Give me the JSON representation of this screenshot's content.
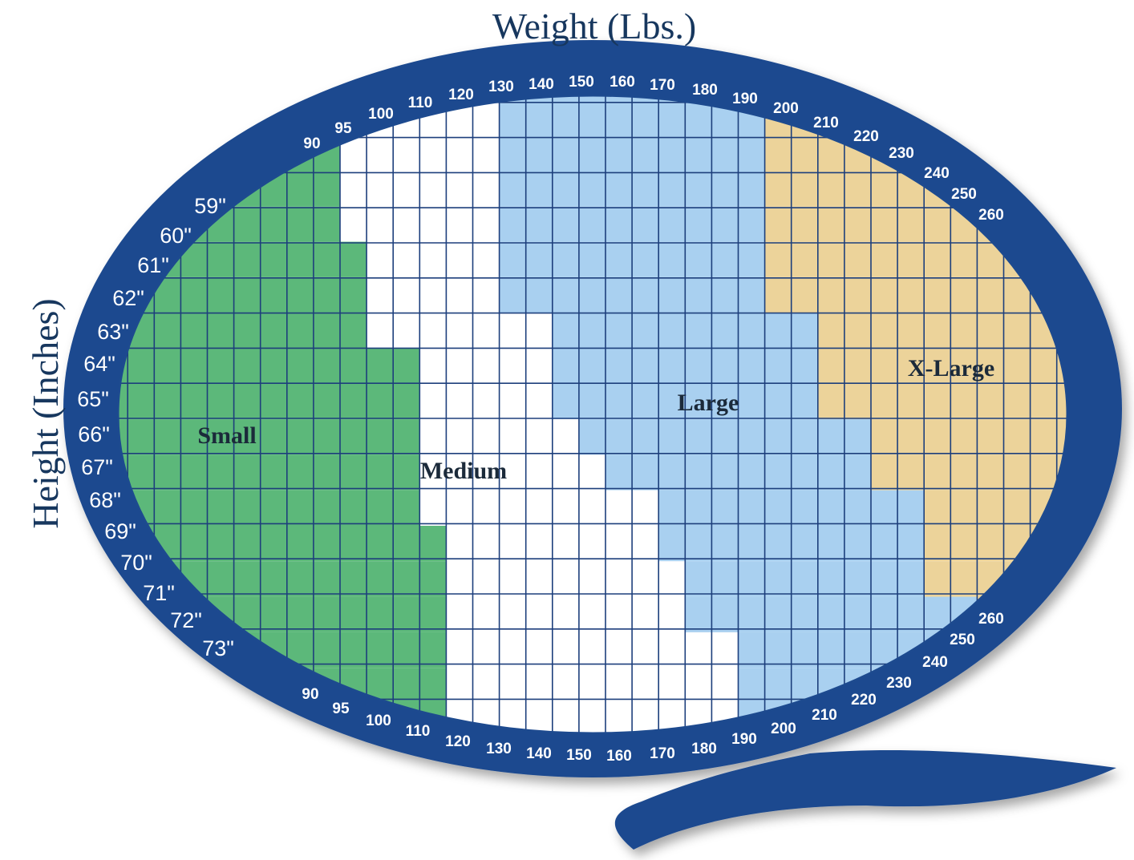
{
  "chart_data": {
    "type": "heatmap",
    "title": "",
    "xlabel": "Weight (Lbs.)",
    "ylabel": "Height (Inches)",
    "weight_ticks": [
      "90",
      "95",
      "100",
      "110",
      "120",
      "130",
      "140",
      "150",
      "160",
      "170",
      "180",
      "190",
      "200",
      "210",
      "220",
      "230",
      "240",
      "250",
      "260"
    ],
    "height_ticks": [
      "59\"",
      "60\"",
      "61\"",
      "62\"",
      "63\"",
      "64\"",
      "65\"",
      "66\"",
      "67\"",
      "68\"",
      "69\"",
      "70\"",
      "71\"",
      "72\"",
      "73\""
    ],
    "categories": [
      {
        "name": "Small",
        "color": "#5cb87a"
      },
      {
        "name": "Medium",
        "color": "#ffffff"
      },
      {
        "name": "Large",
        "color": "#a9d0f0"
      },
      {
        "name": "X-Large",
        "color": "#ecd39a"
      }
    ],
    "size_by_height": [
      {
        "height": 59,
        "small_max_lbs": 95,
        "medium_max_lbs": 130,
        "large_max_lbs": 200
      },
      {
        "height": 60,
        "small_max_lbs": 95,
        "medium_max_lbs": 130,
        "large_max_lbs": 200
      },
      {
        "height": 61,
        "small_max_lbs": 100,
        "medium_max_lbs": 130,
        "large_max_lbs": 200
      },
      {
        "height": 62,
        "small_max_lbs": 100,
        "medium_max_lbs": 130,
        "large_max_lbs": 200
      },
      {
        "height": 63,
        "small_max_lbs": 100,
        "medium_max_lbs": 140,
        "large_max_lbs": 210
      },
      {
        "height": 64,
        "small_max_lbs": 110,
        "medium_max_lbs": 140,
        "large_max_lbs": 210
      },
      {
        "height": 65,
        "small_max_lbs": 110,
        "medium_max_lbs": 140,
        "large_max_lbs": 210
      },
      {
        "height": 66,
        "small_max_lbs": 110,
        "medium_max_lbs": 150,
        "large_max_lbs": 220
      },
      {
        "height": 67,
        "small_max_lbs": 110,
        "medium_max_lbs": 160,
        "large_max_lbs": 220
      },
      {
        "height": 68,
        "small_max_lbs": 110,
        "medium_max_lbs": 170,
        "large_max_lbs": 230
      },
      {
        "height": 69,
        "small_max_lbs": 120,
        "medium_max_lbs": 170,
        "large_max_lbs": 230
      },
      {
        "height": 70,
        "small_max_lbs": 120,
        "medium_max_lbs": 180,
        "large_max_lbs": 230
      },
      {
        "height": 71,
        "small_max_lbs": 120,
        "medium_max_lbs": 180,
        "large_max_lbs": 240
      },
      {
        "height": 72,
        "small_max_lbs": 120,
        "medium_max_lbs": 190,
        "large_max_lbs": 240
      },
      {
        "height": 73,
        "small_max_lbs": 120,
        "medium_max_lbs": 190,
        "large_max_lbs": 240
      }
    ],
    "grid": true,
    "frame_color": "#1d4a8f",
    "grid_color": "#1d3f7c"
  }
}
